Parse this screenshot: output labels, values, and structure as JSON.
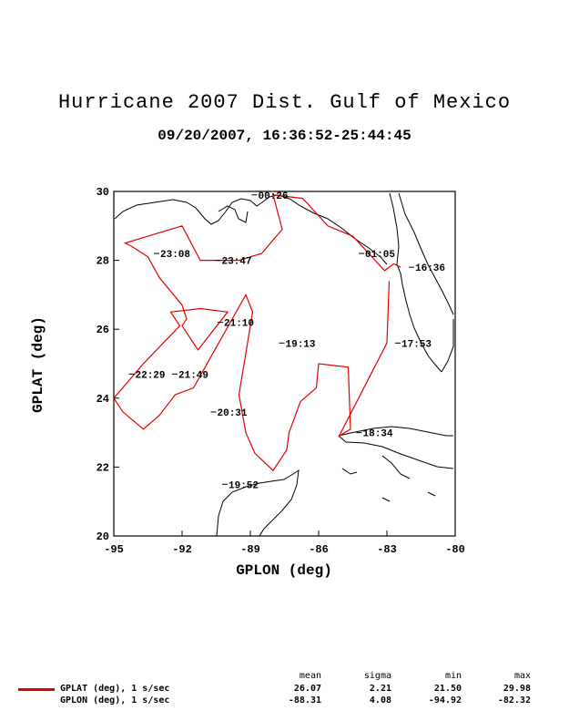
{
  "title": "Hurricane 2007 Dist. Gulf of Mexico",
  "subtitle": "09/20/2007, 16:36:52-25:44:45",
  "chart_data": {
    "type": "line",
    "xlabel": "GPLON (deg)",
    "ylabel": "GPLAT (deg)",
    "xlim": [
      -95,
      -80
    ],
    "ylim": [
      20,
      30
    ],
    "xticks": [
      -95,
      -92,
      -89,
      -86,
      -83,
      -80
    ],
    "yticks": [
      20,
      22,
      24,
      26,
      28,
      30
    ],
    "grid": false,
    "line_color": "#e00000",
    "series": [
      {
        "name": "GPLAT (deg), 1 s/sec",
        "x": [
          -82.4,
          -82.7,
          -83.1,
          -84.5,
          -85.6,
          -86.7,
          -88.0,
          -87.6,
          -88.5,
          -89.5,
          -91.2,
          -92.0,
          -93.5,
          -94.5,
          -94.2,
          -93.5,
          -93.0,
          -92.0,
          -91.8,
          -92.0,
          -91.3,
          -90.0,
          -91.2,
          -92.5,
          -92.1,
          -93.7,
          -95.0,
          -94.6,
          -93.7,
          -93.0,
          -92.3,
          -91.5,
          -89.2,
          -88.9,
          -89.5,
          -89.2,
          -88.8,
          -88.0,
          -87.4,
          -87.3,
          -86.8,
          -86.1,
          -86.0,
          -84.7,
          -84.6,
          -85.1,
          -83.0,
          -82.9
        ],
        "y": [
          27.8,
          27.9,
          27.7,
          28.7,
          29.0,
          29.8,
          29.9,
          28.9,
          28.2,
          28.0,
          28.0,
          29.0,
          28.7,
          28.5,
          28.4,
          28.1,
          27.5,
          26.7,
          26.3,
          26.1,
          25.4,
          26.5,
          26.6,
          26.5,
          26.1,
          25.0,
          24.0,
          23.6,
          23.1,
          23.5,
          24.1,
          24.3,
          27.0,
          26.5,
          24.1,
          23.0,
          22.4,
          21.9,
          22.5,
          23.0,
          23.9,
          24.3,
          25.0,
          24.9,
          23.1,
          22.9,
          25.6,
          27.4
        ]
      }
    ],
    "time_labels": [
      {
        "text": "00:26",
        "x": -88.7,
        "y": 29.9
      },
      {
        "text": "01:05",
        "x": -84.0,
        "y": 28.2
      },
      {
        "text": "23:08",
        "x": -93.0,
        "y": 28.2
      },
      {
        "text": "23:47",
        "x": -90.3,
        "y": 28.0
      },
      {
        "text": "21:10",
        "x": -90.2,
        "y": 26.2
      },
      {
        "text": "19:13",
        "x": -87.5,
        "y": 25.6
      },
      {
        "text": "17:53",
        "x": -82.4,
        "y": 25.6
      },
      {
        "text": "22:29",
        "x": -94.1,
        "y": 24.7
      },
      {
        "text": "21:49",
        "x": -92.2,
        "y": 24.7
      },
      {
        "text": "20:31",
        "x": -90.5,
        "y": 23.6
      },
      {
        "text": "18:34",
        "x": -84.1,
        "y": 23.0
      },
      {
        "text": "19:52",
        "x": -90.0,
        "y": 21.5
      },
      {
        "text": "16:36",
        "x": -81.8,
        "y": 27.8
      }
    ]
  },
  "stats": {
    "headers": [
      "mean",
      "sigma",
      "min",
      "max"
    ],
    "rows": [
      {
        "label": "GPLAT (deg), 1 s/sec",
        "values": [
          "26.07",
          "2.21",
          "21.50",
          "29.98"
        ],
        "color": "#e00000"
      },
      {
        "label": "GPLON (deg), 1 s/sec",
        "values": [
          "-88.31",
          "4.08",
          "-94.92",
          "-82.32"
        ],
        "color": ""
      }
    ]
  }
}
